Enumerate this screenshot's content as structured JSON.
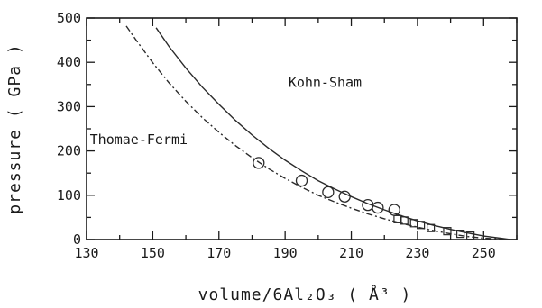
{
  "chart_data": {
    "type": "scatter",
    "title": "",
    "xlabel": "volume/6Al₂O₃  ( Å³ )",
    "ylabel": "pressure  ( GPa )",
    "xlim": [
      130,
      260
    ],
    "ylim": [
      0,
      500
    ],
    "x_ticks": [
      130,
      150,
      170,
      190,
      210,
      230,
      250
    ],
    "y_ticks": [
      0,
      100,
      200,
      300,
      400,
      500
    ],
    "grid": false,
    "series": [
      {
        "name": "Kohn-Sham",
        "kind": "line",
        "style": "solid",
        "x": [
          151,
          155,
          160,
          165,
          170,
          175,
          180,
          185,
          190,
          195,
          200,
          205,
          210,
          215,
          220,
          225,
          230,
          235,
          240,
          245,
          250,
          255,
          258
        ],
        "y": [
          478,
          435,
          387,
          344,
          305,
          269,
          236,
          206,
          179,
          155,
          133,
          114,
          97,
          81,
          67,
          54,
          42,
          32,
          23,
          15,
          8,
          3,
          0
        ]
      },
      {
        "name": "Thomas-Fermi",
        "kind": "line",
        "style": "dash-dot",
        "x": [
          142,
          145,
          150,
          155,
          160,
          165,
          170,
          175,
          180,
          185,
          190,
          195,
          200,
          205,
          210,
          215,
          220,
          225,
          230,
          235,
          240,
          245,
          250,
          255,
          258
        ],
        "y": [
          482,
          450,
          399,
          353,
          312,
          275,
          242,
          212,
          185,
          160,
          138,
          118,
          100,
          85,
          71,
          58,
          47,
          37,
          28,
          20,
          13,
          7,
          3,
          1,
          0
        ]
      },
      {
        "name": "circles",
        "kind": "marker",
        "marker": "circle",
        "x": [
          182,
          195,
          203,
          208,
          215,
          218,
          223
        ],
        "y": [
          173,
          133,
          107,
          97,
          78,
          72,
          67
        ]
      },
      {
        "name": "squares",
        "kind": "marker",
        "marker": "square",
        "x": [
          224,
          226,
          229,
          231,
          234,
          239,
          243,
          246
        ],
        "y": [
          46,
          43,
          37,
          33,
          26,
          19,
          13,
          9
        ]
      }
    ],
    "annotations": [
      {
        "text": "Kohn-Sham",
        "x": 191,
        "y": 345
      },
      {
        "text": "Thomae-Fermi",
        "x": 131,
        "y": 215
      }
    ]
  }
}
